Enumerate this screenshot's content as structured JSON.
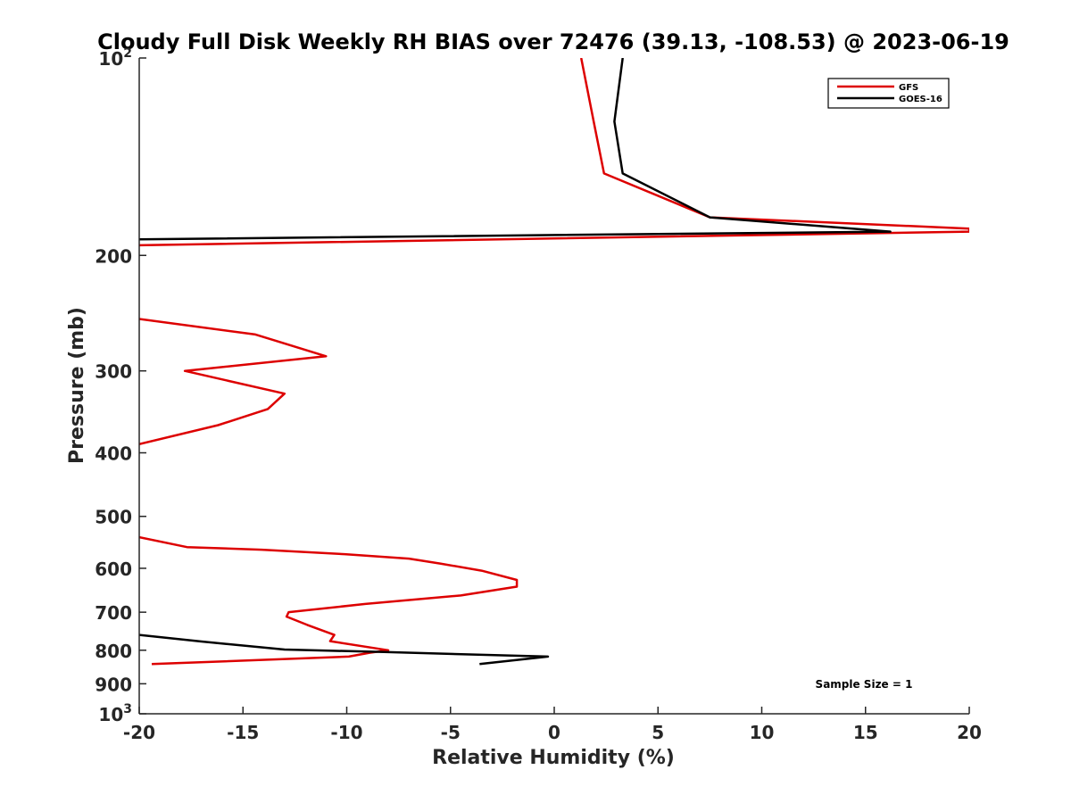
{
  "chart_data": {
    "type": "line",
    "title": "Cloudy Full Disk Weekly RH BIAS over 72476 (39.13, -108.53) @ 2023-06-19",
    "xlabel": "Relative Humidity (%)",
    "ylabel": "Pressure (mb)",
    "xlim": [
      -20,
      20
    ],
    "ylim": [
      100,
      1000
    ],
    "yscale": "log",
    "y_reversed": true,
    "grid": false,
    "legend_placement": "top-right",
    "xticks": [
      {
        "value": -20,
        "label": "-20"
      },
      {
        "value": -15,
        "label": "-15"
      },
      {
        "value": -10,
        "label": "-10"
      },
      {
        "value": -5,
        "label": "-5"
      },
      {
        "value": 0,
        "label": "0"
      },
      {
        "value": 5,
        "label": "5"
      },
      {
        "value": 10,
        "label": "10"
      },
      {
        "value": 15,
        "label": "15"
      },
      {
        "value": 20,
        "label": "20"
      }
    ],
    "yticks": [
      {
        "value": 100,
        "base": "10",
        "exp": "2"
      },
      {
        "value": 200,
        "base": "200",
        "exp": ""
      },
      {
        "value": 300,
        "base": "300",
        "exp": ""
      },
      {
        "value": 400,
        "base": "400",
        "exp": ""
      },
      {
        "value": 500,
        "base": "500",
        "exp": ""
      },
      {
        "value": 600,
        "base": "600",
        "exp": ""
      },
      {
        "value": 700,
        "base": "700",
        "exp": ""
      },
      {
        "value": 800,
        "base": "800",
        "exp": ""
      },
      {
        "value": 900,
        "base": "900",
        "exp": ""
      },
      {
        "value": 1000,
        "base": "10",
        "exp": "3"
      }
    ],
    "annotation": "Sample Size = 1",
    "series": [
      {
        "name": "GFS",
        "color": "#dd0000",
        "segments": [
          [
            {
              "x": 1.3,
              "y": 100
            },
            {
              "x": 1.9,
              "y": 125
            },
            {
              "x": 2.4,
              "y": 150
            },
            {
              "x": 7.5,
              "y": 175
            },
            {
              "x": 20,
              "y": 182
            },
            {
              "x": 20,
              "y": 184
            },
            {
              "x": -20,
              "y": 193
            }
          ],
          [
            {
              "x": -20,
              "y": 250
            },
            {
              "x": -14.4,
              "y": 264
            },
            {
              "x": -11,
              "y": 285
            },
            {
              "x": -17.8,
              "y": 300
            },
            {
              "x": -13,
              "y": 325
            },
            {
              "x": -13.8,
              "y": 343
            },
            {
              "x": -16.2,
              "y": 363
            },
            {
              "x": -20,
              "y": 388
            }
          ],
          [
            {
              "x": -20,
              "y": 538
            },
            {
              "x": -17.7,
              "y": 557
            },
            {
              "x": -14.1,
              "y": 562
            },
            {
              "x": -10.1,
              "y": 571
            },
            {
              "x": -7,
              "y": 580
            },
            {
              "x": -5.5,
              "y": 590
            },
            {
              "x": -3.5,
              "y": 605
            },
            {
              "x": -1.8,
              "y": 625
            },
            {
              "x": -1.8,
              "y": 640
            },
            {
              "x": -4.5,
              "y": 660
            },
            {
              "x": -9.1,
              "y": 680
            },
            {
              "x": -12.8,
              "y": 700
            },
            {
              "x": -12.9,
              "y": 711
            },
            {
              "x": -11.9,
              "y": 732
            },
            {
              "x": -10.6,
              "y": 758
            },
            {
              "x": -10.8,
              "y": 775
            },
            {
              "x": -8,
              "y": 800
            },
            {
              "x": -8.9,
              "y": 807
            },
            {
              "x": -9.9,
              "y": 818
            },
            {
              "x": -19.4,
              "y": 840
            }
          ]
        ]
      },
      {
        "name": "GOES-16",
        "color": "#000000",
        "segments": [
          [
            {
              "x": 3.3,
              "y": 100
            },
            {
              "x": 2.9,
              "y": 125
            },
            {
              "x": 3.3,
              "y": 150
            },
            {
              "x": 7.5,
              "y": 175
            },
            {
              "x": 16.2,
              "y": 184
            },
            {
              "x": -20,
              "y": 189
            }
          ],
          [
            {
              "x": -20,
              "y": 758
            },
            {
              "x": -17,
              "y": 776
            },
            {
              "x": -13,
              "y": 798
            },
            {
              "x": -8.2,
              "y": 805
            },
            {
              "x": -0.3,
              "y": 818
            },
            {
              "x": -3.6,
              "y": 840
            }
          ]
        ]
      }
    ]
  }
}
